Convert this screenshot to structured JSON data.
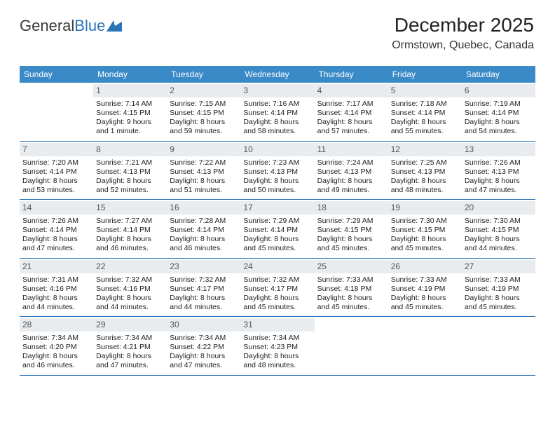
{
  "logo": {
    "part1": "General",
    "part2": "Blue"
  },
  "header": {
    "title": "December 2025",
    "subtitle": "Ormstown, Quebec, Canada"
  },
  "colors": {
    "header_bg": "#3a8ac8",
    "header_text": "#ffffff",
    "daynum_bg": "#e8ecef",
    "rule": "#2a74b8",
    "logo_blue": "#2a74b8"
  },
  "day_names": [
    "Sunday",
    "Monday",
    "Tuesday",
    "Wednesday",
    "Thursday",
    "Friday",
    "Saturday"
  ],
  "weeks": [
    [
      null,
      {
        "n": "1",
        "sr": "7:14 AM",
        "ss": "4:15 PM",
        "dl": "9 hours and 1 minute."
      },
      {
        "n": "2",
        "sr": "7:15 AM",
        "ss": "4:15 PM",
        "dl": "8 hours and 59 minutes."
      },
      {
        "n": "3",
        "sr": "7:16 AM",
        "ss": "4:14 PM",
        "dl": "8 hours and 58 minutes."
      },
      {
        "n": "4",
        "sr": "7:17 AM",
        "ss": "4:14 PM",
        "dl": "8 hours and 57 minutes."
      },
      {
        "n": "5",
        "sr": "7:18 AM",
        "ss": "4:14 PM",
        "dl": "8 hours and 55 minutes."
      },
      {
        "n": "6",
        "sr": "7:19 AM",
        "ss": "4:14 PM",
        "dl": "8 hours and 54 minutes."
      }
    ],
    [
      {
        "n": "7",
        "sr": "7:20 AM",
        "ss": "4:14 PM",
        "dl": "8 hours and 53 minutes."
      },
      {
        "n": "8",
        "sr": "7:21 AM",
        "ss": "4:13 PM",
        "dl": "8 hours and 52 minutes."
      },
      {
        "n": "9",
        "sr": "7:22 AM",
        "ss": "4:13 PM",
        "dl": "8 hours and 51 minutes."
      },
      {
        "n": "10",
        "sr": "7:23 AM",
        "ss": "4:13 PM",
        "dl": "8 hours and 50 minutes."
      },
      {
        "n": "11",
        "sr": "7:24 AM",
        "ss": "4:13 PM",
        "dl": "8 hours and 49 minutes."
      },
      {
        "n": "12",
        "sr": "7:25 AM",
        "ss": "4:13 PM",
        "dl": "8 hours and 48 minutes."
      },
      {
        "n": "13",
        "sr": "7:26 AM",
        "ss": "4:13 PM",
        "dl": "8 hours and 47 minutes."
      }
    ],
    [
      {
        "n": "14",
        "sr": "7:26 AM",
        "ss": "4:14 PM",
        "dl": "8 hours and 47 minutes."
      },
      {
        "n": "15",
        "sr": "7:27 AM",
        "ss": "4:14 PM",
        "dl": "8 hours and 46 minutes."
      },
      {
        "n": "16",
        "sr": "7:28 AM",
        "ss": "4:14 PM",
        "dl": "8 hours and 46 minutes."
      },
      {
        "n": "17",
        "sr": "7:29 AM",
        "ss": "4:14 PM",
        "dl": "8 hours and 45 minutes."
      },
      {
        "n": "18",
        "sr": "7:29 AM",
        "ss": "4:15 PM",
        "dl": "8 hours and 45 minutes."
      },
      {
        "n": "19",
        "sr": "7:30 AM",
        "ss": "4:15 PM",
        "dl": "8 hours and 45 minutes."
      },
      {
        "n": "20",
        "sr": "7:30 AM",
        "ss": "4:15 PM",
        "dl": "8 hours and 44 minutes."
      }
    ],
    [
      {
        "n": "21",
        "sr": "7:31 AM",
        "ss": "4:16 PM",
        "dl": "8 hours and 44 minutes."
      },
      {
        "n": "22",
        "sr": "7:32 AM",
        "ss": "4:16 PM",
        "dl": "8 hours and 44 minutes."
      },
      {
        "n": "23",
        "sr": "7:32 AM",
        "ss": "4:17 PM",
        "dl": "8 hours and 44 minutes."
      },
      {
        "n": "24",
        "sr": "7:32 AM",
        "ss": "4:17 PM",
        "dl": "8 hours and 45 minutes."
      },
      {
        "n": "25",
        "sr": "7:33 AM",
        "ss": "4:18 PM",
        "dl": "8 hours and 45 minutes."
      },
      {
        "n": "26",
        "sr": "7:33 AM",
        "ss": "4:19 PM",
        "dl": "8 hours and 45 minutes."
      },
      {
        "n": "27",
        "sr": "7:33 AM",
        "ss": "4:19 PM",
        "dl": "8 hours and 45 minutes."
      }
    ],
    [
      {
        "n": "28",
        "sr": "7:34 AM",
        "ss": "4:20 PM",
        "dl": "8 hours and 46 minutes."
      },
      {
        "n": "29",
        "sr": "7:34 AM",
        "ss": "4:21 PM",
        "dl": "8 hours and 47 minutes."
      },
      {
        "n": "30",
        "sr": "7:34 AM",
        "ss": "4:22 PM",
        "dl": "8 hours and 47 minutes."
      },
      {
        "n": "31",
        "sr": "7:34 AM",
        "ss": "4:23 PM",
        "dl": "8 hours and 48 minutes."
      },
      null,
      null,
      null
    ]
  ],
  "labels": {
    "sunrise": "Sunrise:",
    "sunset": "Sunset:",
    "daylight": "Daylight:"
  }
}
